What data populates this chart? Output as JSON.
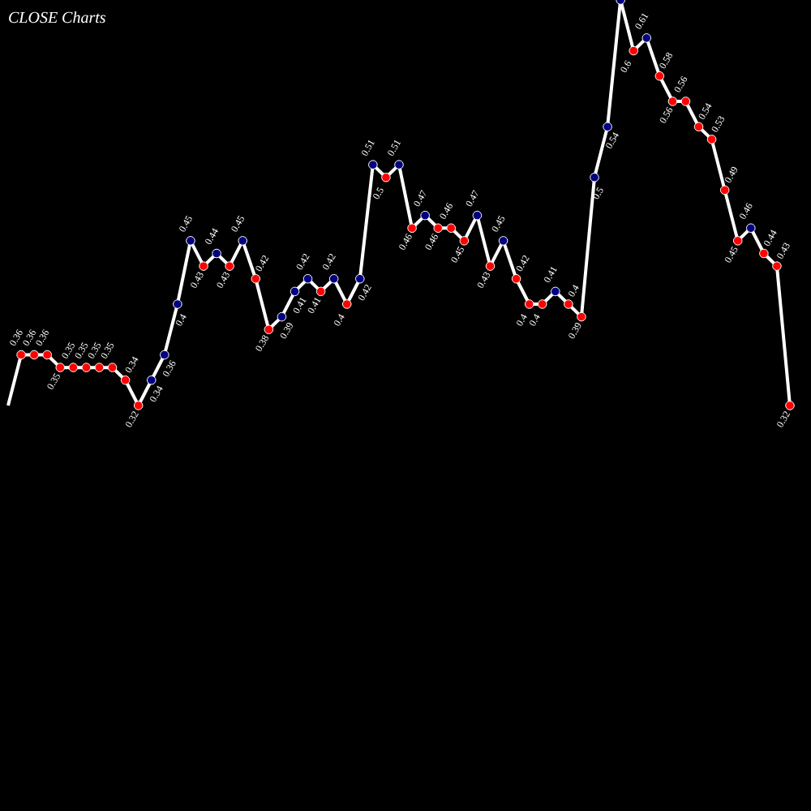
{
  "chart_data": {
    "type": "line",
    "title": "CLOSE Charts",
    "categories": [
      null,
      null,
      null,
      null,
      null,
      null,
      null,
      null,
      null,
      null,
      null,
      null,
      null,
      null,
      null,
      null,
      null,
      null,
      null,
      null,
      null,
      null,
      null,
      null,
      null,
      null,
      null,
      null,
      null,
      null,
      null,
      null,
      null,
      null,
      null,
      null,
      null,
      null,
      null,
      null,
      null,
      null,
      null,
      null,
      null,
      null,
      null,
      null,
      null,
      null,
      null,
      null,
      null,
      null,
      null,
      null,
      null,
      null,
      null,
      null,
      null
    ],
    "ylim": [
      0,
      0.64
    ],
    "marker": "circle",
    "series": [
      {
        "color": "#ffffff",
        "values": [
          0.32,
          0.36,
          0.36,
          0.36,
          0.35,
          0.35,
          0.35,
          0.35,
          0.35,
          0.34,
          0.32,
          0.34,
          0.36,
          0.4,
          0.45,
          0.43,
          0.44,
          0.43,
          0.45,
          0.42,
          0.38,
          0.39,
          0.41,
          0.42,
          0.41,
          0.42,
          0.4,
          0.42,
          0.51,
          0.5,
          0.51,
          0.46,
          0.47,
          0.46,
          0.46,
          0.45,
          0.47,
          0.43,
          0.45,
          0.42,
          0.4,
          0.4,
          0.41,
          0.4,
          0.39,
          0.5,
          0.54,
          0.64,
          0.6,
          0.61,
          0.58,
          0.56,
          0.56,
          0.54,
          0.53,
          0.49,
          0.45,
          0.46,
          0.44,
          0.43,
          0.32
        ],
        "value_labels": [
          null,
          "0.36",
          "0.36",
          "0.36",
          "0.35",
          "0.35",
          "0.35",
          "0.35",
          "0.35",
          "0.34",
          "0.32",
          "0.34",
          "0.36",
          "0.4",
          "0.45",
          "0.43",
          "0.44",
          "0.43",
          "0.45",
          "0.42",
          "0.38",
          "0.39",
          "0.41",
          "0.42",
          "0.41",
          "0.42",
          "0.4",
          "0.42",
          "0.51",
          "0.5",
          "0.51",
          "0.46",
          "0.47",
          "0.46",
          "0.46",
          "0.45",
          "0.47",
          "0.43",
          "0.45",
          "0.42",
          "0.4",
          "0.4",
          "0.41",
          "0.4",
          "0.39",
          "0.5",
          "0.54",
          null,
          "0.6",
          "0.61",
          "0.58",
          "0.56",
          "0.56",
          "0.54",
          "0.53",
          "0.49",
          "0.45",
          "0.46",
          "0.44",
          "0.43",
          "0.32"
        ],
        "colors": [
          null,
          "#ff0000",
          "#ff0000",
          "#ff0000",
          "#ff0000",
          "#ff0000",
          "#ff0000",
          "#ff0000",
          "#ff0000",
          "#ff0000",
          "#ff0000",
          "#000080",
          "#000080",
          "#000080",
          "#000080",
          "#ff0000",
          "#000080",
          "#ff0000",
          "#000080",
          "#ff0000",
          "#ff0000",
          "#000080",
          "#000080",
          "#000080",
          "#ff0000",
          "#000080",
          "#ff0000",
          "#000080",
          "#000080",
          "#ff0000",
          "#000080",
          "#ff0000",
          "#000080",
          "#ff0000",
          "#ff0000",
          "#ff0000",
          "#000080",
          "#ff0000",
          "#000080",
          "#ff0000",
          "#ff0000",
          "#ff0000",
          "#000080",
          "#ff0000",
          "#ff0000",
          "#000080",
          "#000080",
          "#000080",
          "#ff0000",
          "#000080",
          "#ff0000",
          "#ff0000",
          "#ff0000",
          "#ff0000",
          "#ff0000",
          "#ff0000",
          "#ff0000",
          "#000080",
          "#ff0000",
          "#ff0000",
          "#ff0000"
        ]
      }
    ]
  }
}
